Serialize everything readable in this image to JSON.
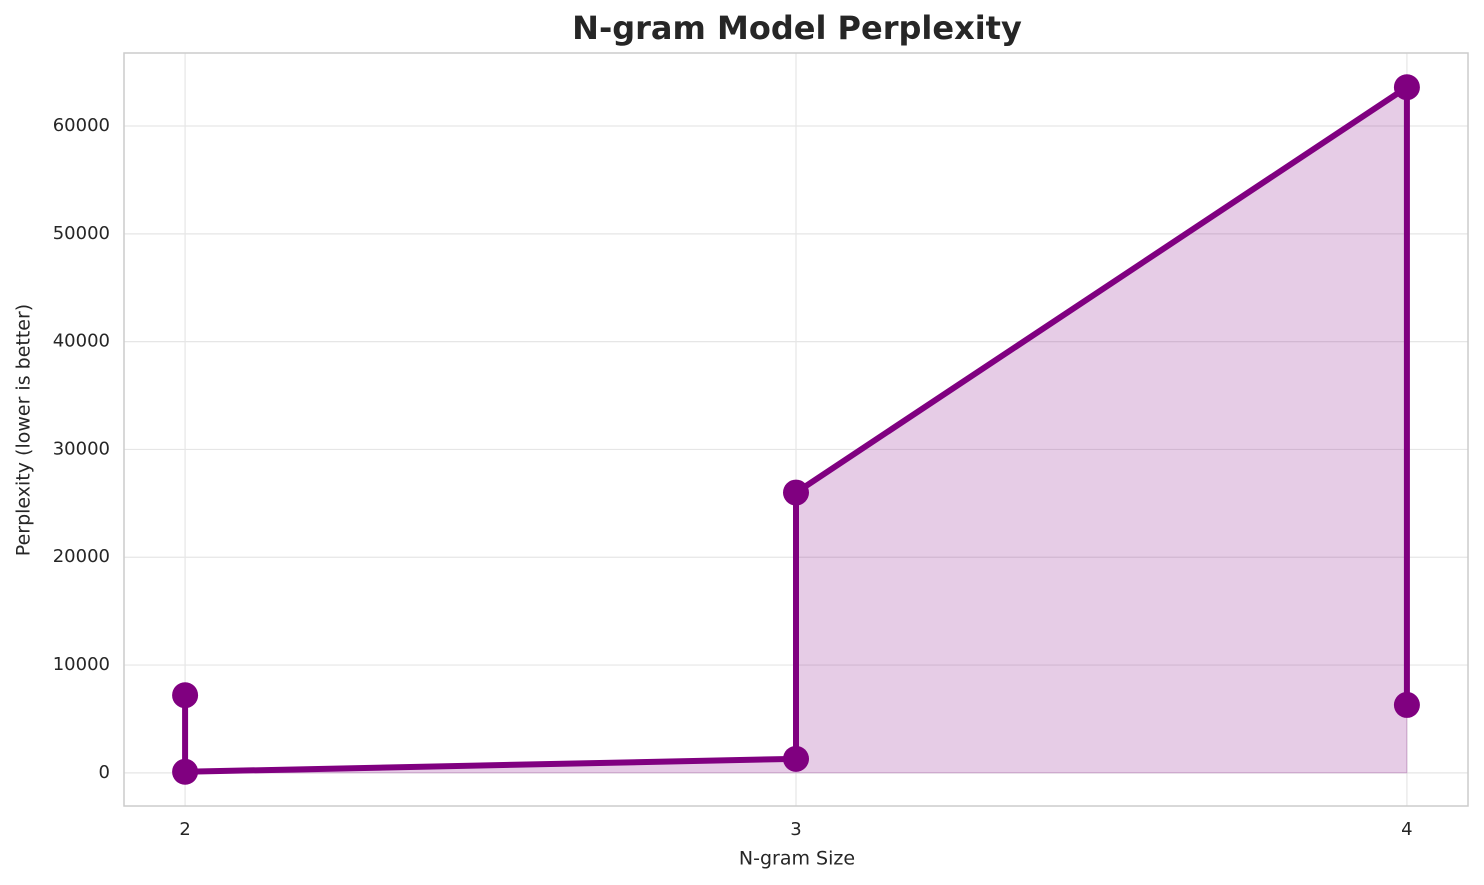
{
  "chart_data": {
    "type": "line",
    "title": "N-gram Model Perplexity",
    "x_label": "N-gram Size",
    "y_label": "Perplexity (lower is better)",
    "x": [
      2,
      2,
      3,
      3,
      4,
      4
    ],
    "series": [
      {
        "color": "#800080",
        "values": [
          7200,
          100,
          1300,
          26000,
          63600,
          6300
        ]
      }
    ],
    "fill": true,
    "xlim": [
      1.9,
      4.1
    ],
    "xticks": [
      2,
      3,
      4
    ],
    "ylim": [
      -3075,
      66775
    ],
    "yticks": [
      0,
      10000,
      20000,
      30000,
      40000,
      50000,
      60000
    ],
    "grid": true
  }
}
